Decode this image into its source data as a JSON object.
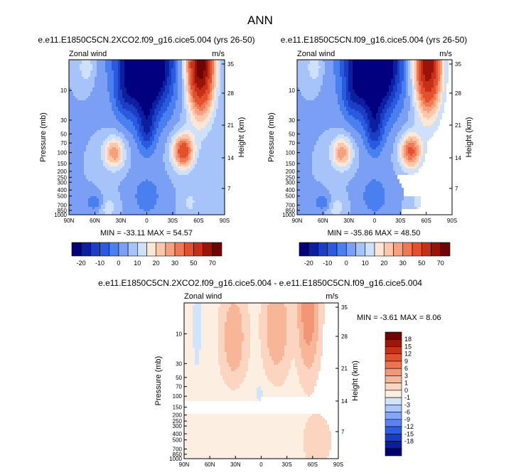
{
  "figure": {
    "title": "ANN",
    "colors": {
      "zonal_scale": [
        "#02007f",
        "#0b1fa0",
        "#1a3fc4",
        "#2a5ae0",
        "#4a7ff0",
        "#7a9ff5",
        "#a6c4fa",
        "#cfe0fb",
        "#fde6d6",
        "#fbc7a8",
        "#f7a07f",
        "#f07852",
        "#e4502e",
        "#c63017",
        "#9a1308",
        "#6f0404"
      ],
      "diff_scale": [
        "#020070",
        "#0b1f9e",
        "#173ec6",
        "#2f5de2",
        "#5a82f1",
        "#85a6f6",
        "#aac8fb",
        "#d2e3fc",
        "#fdeee2",
        "#fbd5bf",
        "#f8b699",
        "#f29675",
        "#ec754f",
        "#e0522e",
        "#c53216",
        "#9f1507",
        "#730202"
      ]
    },
    "panels": [
      {
        "title": "e.e11.E1850C5CN.2XCO2.f09_g16.cice5.004 (yrs 26-50)",
        "label_left": "Zonal wind",
        "label_right": "m/s",
        "stats": "MIN = -33.11  MAX = 54.57"
      },
      {
        "title": "e.e11.E1850C5CN.f09_g16.cice5.004 (yrs 26-50)",
        "label_left": "Zonal wind",
        "label_right": "m/s",
        "stats": "MIN = -35.86  MAX = 48.50"
      },
      {
        "title": "e.e11.E1850C5CN.2XCO2.f09_g16.cice5.004 - e.e11.E1850C5CN.f09_g16.cice5.004",
        "label_left": "Zonal wind",
        "label_right": "m/s",
        "stats": "MIN = -3.61  MAX =  8.06"
      }
    ],
    "colorbar_zonal": {
      "labels": [
        "-20",
        "-10",
        "0",
        "10",
        "20",
        "30",
        "50",
        "70"
      ]
    },
    "colorbar_diff": {
      "labels": [
        "18",
        "15",
        "12",
        "9",
        "6",
        "3",
        "1",
        "0",
        "-1",
        "-3",
        "-6",
        "-9",
        "-12",
        "-15",
        "-18"
      ]
    }
  },
  "chart_data": [
    {
      "type": "contour",
      "panel": "2XCO2",
      "title": "e.e11.E1850C5CN.2XCO2.f09_g16.cice5.004 (yrs 26-50)",
      "variable": "Zonal wind",
      "units": "m/s",
      "xlabel": "",
      "ylabel": "Pressure (mb)",
      "y2label": "Height (km)",
      "x_ticks": [
        "90N",
        "60N",
        "30N",
        "0",
        "30S",
        "60S",
        "90S"
      ],
      "y_ticks": [
        "10",
        "30",
        "50",
        "70",
        "100",
        "150",
        "200",
        "250",
        "300",
        "400",
        "500",
        "700",
        "850",
        "1000"
      ],
      "y2_ticks": [
        "35",
        "28",
        "21",
        "14",
        "7"
      ],
      "min": -33.11,
      "max": 54.57
    },
    {
      "type": "contour",
      "panel": "control",
      "title": "e.e11.E1850C5CN.f09_g16.cice5.004 (yrs 26-50)",
      "variable": "Zonal wind",
      "units": "m/s",
      "xlabel": "",
      "ylabel": "Pressure (mb)",
      "y2label": "Height (km)",
      "x_ticks": [
        "90N",
        "60N",
        "30N",
        "0",
        "30S",
        "60S",
        "90S"
      ],
      "y_ticks": [
        "10",
        "30",
        "50",
        "70",
        "100",
        "150",
        "200",
        "250",
        "300",
        "400",
        "500",
        "700",
        "850",
        "1000"
      ],
      "y2_ticks": [
        "35",
        "28",
        "21",
        "14",
        "7"
      ],
      "min": -35.86,
      "max": 48.5
    },
    {
      "type": "contour",
      "panel": "difference",
      "title": "e.e11.E1850C5CN.2XCO2.f09_g16.cice5.004 - e.e11.E1850C5CN.f09_g16.cice5.004",
      "variable": "Zonal wind",
      "units": "m/s",
      "xlabel": "",
      "ylabel": "Pressure (mb)",
      "y2label": "Height (km)",
      "x_ticks": [
        "90N",
        "60N",
        "30N",
        "0",
        "30S",
        "60S",
        "90S"
      ],
      "y_ticks": [
        "10",
        "30",
        "50",
        "70",
        "100",
        "150",
        "200",
        "250",
        "300",
        "400",
        "500",
        "700",
        "850",
        "1000"
      ],
      "y2_ticks": [
        "35",
        "28",
        "21",
        "14",
        "7"
      ],
      "min": -3.61,
      "max": 8.06
    }
  ]
}
